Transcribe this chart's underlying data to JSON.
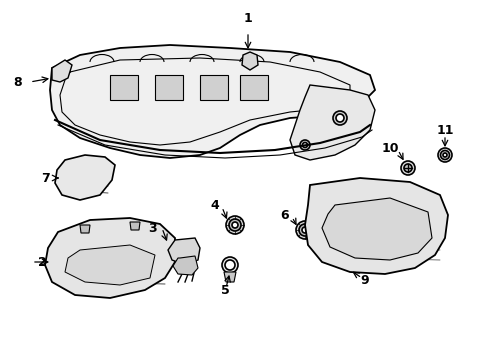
{
  "background_color": "#ffffff",
  "line_color": "#000000",
  "line_width": 1.2
}
